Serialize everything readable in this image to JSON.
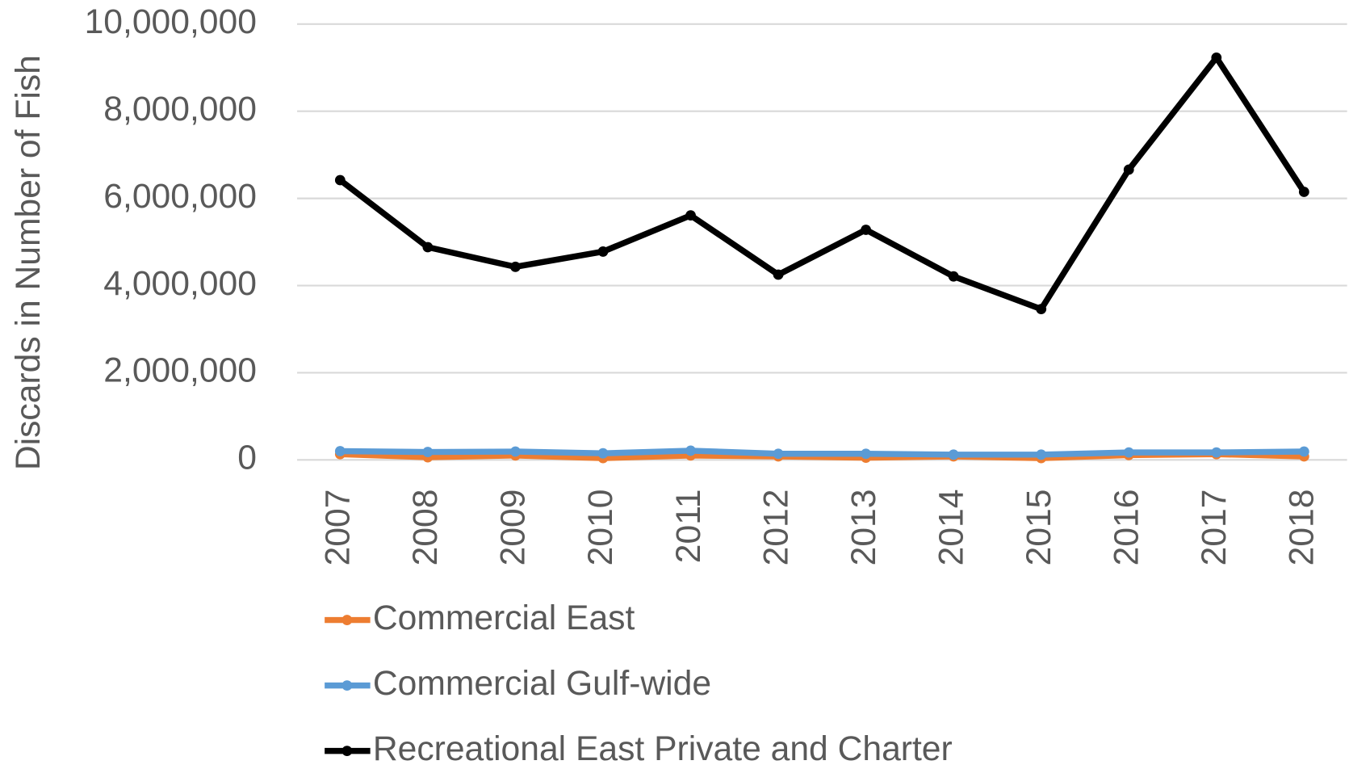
{
  "chart_data": {
    "type": "line",
    "y_axis_label": "Discards in Number of Fish",
    "categories": [
      "2007",
      "2008",
      "2009",
      "2010",
      "2011",
      "2012",
      "2013",
      "2014",
      "2015",
      "2016",
      "2017",
      "2018"
    ],
    "series": [
      {
        "name": "Commercial East",
        "color": "#ed7d31",
        "values": [
          130000,
          60000,
          100000,
          40000,
          100000,
          80000,
          50000,
          80000,
          40000,
          110000,
          130000,
          80000
        ]
      },
      {
        "name": "Commercial Gulf-wide",
        "color": "#5b9bd5",
        "values": [
          200000,
          180000,
          190000,
          150000,
          210000,
          140000,
          140000,
          120000,
          120000,
          170000,
          170000,
          190000
        ]
      },
      {
        "name": "Recreational East Private and Charter",
        "color": "#000000",
        "values": [
          6420000,
          4880000,
          4430000,
          4780000,
          5610000,
          4250000,
          5280000,
          4210000,
          3460000,
          6660000,
          9230000,
          6150000
        ]
      }
    ],
    "ylim": [
      0,
      10000000
    ],
    "yticks": [
      0,
      {
        "value": 2000000,
        "label": "2,000,000"
      },
      {
        "value": 4000000,
        "label": "4,000,000"
      },
      {
        "value": 6000000,
        "label": "6,000,000"
      },
      {
        "value": 8000000,
        "label": "8,000,000"
      },
      {
        "value": 10000000,
        "label": "10,000,000"
      }
    ],
    "grid": true,
    "legend": "bottom"
  }
}
